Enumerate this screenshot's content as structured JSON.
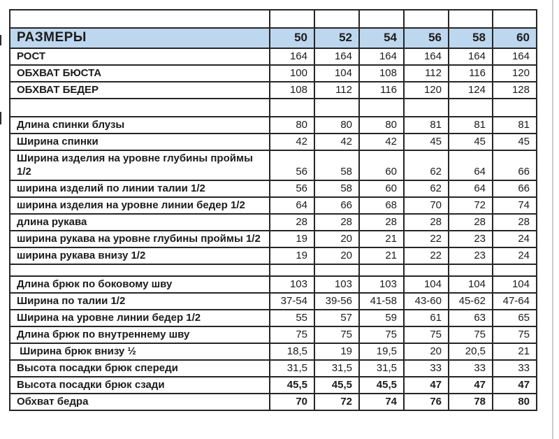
{
  "colors": {
    "header_bg": "#bdd7ee",
    "border": "#262626",
    "text": "#1c1c1c",
    "edge_line": "#c9cdd1"
  },
  "table": {
    "rows": [
      {
        "type": "spacer",
        "label": "",
        "values": [
          "",
          "",
          "",
          "",
          "",
          ""
        ]
      },
      {
        "type": "header",
        "label": "РАЗМЕРЫ",
        "values": [
          "50",
          "52",
          "54",
          "56",
          "58",
          "60"
        ]
      },
      {
        "type": "normal",
        "label": "РОСТ",
        "values": [
          "164",
          "164",
          "164",
          "164",
          "164",
          "164"
        ]
      },
      {
        "type": "normal",
        "label": "ОБХВАТ БЮСТА",
        "values": [
          "100",
          "104",
          "108",
          "112",
          "116",
          "120"
        ]
      },
      {
        "type": "normal",
        "label": "ОБХВАТ БЕДЕР",
        "values": [
          "108",
          "112",
          "116",
          "120",
          "124",
          "128"
        ]
      },
      {
        "type": "spacer",
        "label": "",
        "values": [
          "",
          "",
          "",
          "",
          "",
          ""
        ]
      },
      {
        "type": "normal",
        "label": "Длина спинки блузы",
        "values": [
          "80",
          "80",
          "80",
          "81",
          "81",
          "81"
        ]
      },
      {
        "type": "normal",
        "label": "Ширина спинки",
        "values": [
          "42",
          "42",
          "42",
          "45",
          "45",
          "45"
        ]
      },
      {
        "type": "tall",
        "label": "Ширина изделия на уровне глубины проймы 1/2",
        "values": [
          "56",
          "58",
          "60",
          "62",
          "64",
          "66"
        ]
      },
      {
        "type": "normal",
        "label": "ширина изделий по линии талии 1/2",
        "values": [
          "56",
          "58",
          "60",
          "62",
          "64",
          "66"
        ]
      },
      {
        "type": "normal",
        "label": "ширина изделия на уровне линии бедер 1/2",
        "values": [
          "64",
          "66",
          "68",
          "70",
          "72",
          "74"
        ]
      },
      {
        "type": "normal",
        "label": "длина рукава",
        "values": [
          "28",
          "28",
          "28",
          "28",
          "28",
          "28"
        ]
      },
      {
        "type": "normal",
        "label": "ширина рукава на уровне глубины проймы 1/2",
        "values": [
          "19",
          "20",
          "21",
          "22",
          "23",
          "24"
        ]
      },
      {
        "type": "normal",
        "label": "ширина рукава внизу 1/2",
        "values": [
          "19",
          "20",
          "21",
          "22",
          "23",
          "24"
        ]
      },
      {
        "type": "spacer-small",
        "label": "",
        "values": [
          "",
          "",
          "",
          "",
          "",
          ""
        ]
      },
      {
        "type": "normal",
        "label": "Длина брюк по боковому шву",
        "values": [
          "103",
          "103",
          "103",
          "104",
          "104",
          "104"
        ]
      },
      {
        "type": "normal",
        "label": "Ширина по талии 1/2",
        "values": [
          "37-54",
          "39-56",
          "41-58",
          "43-60",
          "45-62",
          "47-64"
        ]
      },
      {
        "type": "normal",
        "label": "Ширина на уровне линии бедер 1/2",
        "values": [
          "55",
          "57",
          "59",
          "61",
          "63",
          "65"
        ]
      },
      {
        "type": "normal",
        "label": "Длина брюк по внутреннему шву",
        "values": [
          "75",
          "75",
          "75",
          "75",
          "75",
          "75"
        ]
      },
      {
        "type": "normal",
        "label": " Ширина брюк внизу ½",
        "values": [
          "18,5",
          "19",
          "19,5",
          "20",
          "20,5",
          "21"
        ]
      },
      {
        "type": "normal",
        "label": "Высота посадки брюк спереди",
        "values": [
          "31,5",
          "31,5",
          "31,5",
          "33",
          "33",
          "33"
        ]
      },
      {
        "type": "normal",
        "label": "Высота посадки брюк сзади",
        "bold": true,
        "values": [
          "45,5",
          "45,5",
          "45,5",
          "47",
          "47",
          "47"
        ]
      },
      {
        "type": "normal",
        "label": "Обхват бедра",
        "bold": true,
        "values": [
          "70",
          "72",
          "74",
          "76",
          "78",
          "80"
        ]
      }
    ]
  }
}
